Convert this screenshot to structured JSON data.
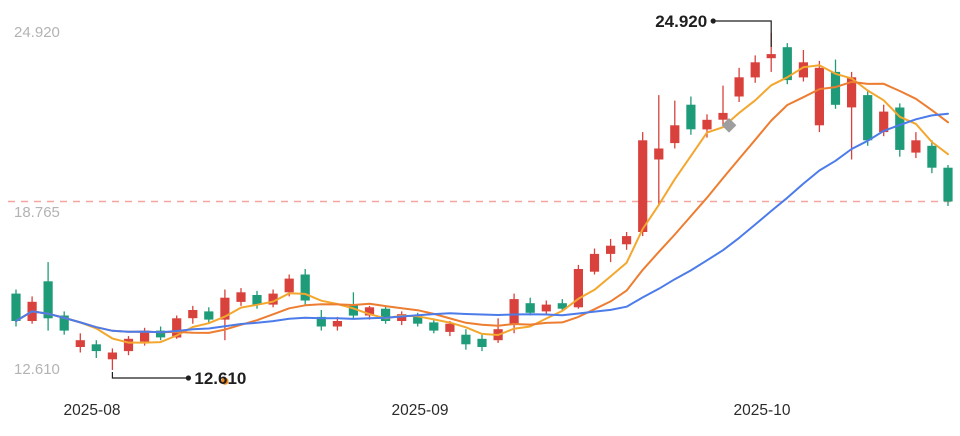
{
  "chart": {
    "y_axis_labels": [
      {
        "text": "24.920",
        "value": 24.92
      },
      {
        "text": "18.765",
        "value": 18.765
      },
      {
        "text": "12.610",
        "value": 12.61
      }
    ],
    "x_axis_labels": [
      {
        "text": "2025-08",
        "month": "2025-08"
      },
      {
        "text": "2025-09",
        "month": "2025-09"
      },
      {
        "text": "2025-10",
        "month": "2025-10"
      }
    ]
  },
  "chart_data": {
    "type": "candlestick",
    "ylim": [
      12.61,
      24.92
    ],
    "grid": false,
    "legend": false,
    "dates": [
      "2025-07-28",
      "2025-07-29",
      "2025-07-30",
      "2025-07-31",
      "2025-08-01",
      "2025-08-04",
      "2025-08-05",
      "2025-08-06",
      "2025-08-07",
      "2025-08-08",
      "2025-08-11",
      "2025-08-12",
      "2025-08-13",
      "2025-08-14",
      "2025-08-15",
      "2025-08-18",
      "2025-08-19",
      "2025-08-20",
      "2025-08-21",
      "2025-08-22",
      "2025-08-25",
      "2025-08-26",
      "2025-08-27",
      "2025-08-28",
      "2025-08-29",
      "2025-09-01",
      "2025-09-02",
      "2025-09-03",
      "2025-09-04",
      "2025-09-05",
      "2025-09-08",
      "2025-09-09",
      "2025-09-10",
      "2025-09-11",
      "2025-09-12",
      "2025-09-15",
      "2025-09-16",
      "2025-09-17",
      "2025-09-18",
      "2025-09-19",
      "2025-09-22",
      "2025-09-23",
      "2025-09-24",
      "2025-09-25",
      "2025-09-26",
      "2025-09-29",
      "2025-09-30",
      "2025-10-01",
      "2025-10-02",
      "2025-10-03",
      "2025-10-06",
      "2025-10-07",
      "2025-10-08",
      "2025-10-09",
      "2025-10-10",
      "2025-10-13",
      "2025-10-14",
      "2025-10-15",
      "2025-10-16"
    ],
    "ohlc_columns": [
      "open",
      "high",
      "low",
      "close"
    ],
    "ohlc": [
      [
        15.4,
        15.55,
        14.2,
        14.4
      ],
      [
        14.4,
        15.3,
        14.3,
        15.1
      ],
      [
        15.85,
        16.55,
        14.05,
        14.5
      ],
      [
        14.6,
        14.75,
        13.9,
        14.05
      ],
      [
        13.45,
        13.95,
        13.25,
        13.7
      ],
      [
        13.55,
        13.7,
        13.05,
        13.3
      ],
      [
        13.0,
        13.4,
        12.61,
        13.25
      ],
      [
        13.3,
        13.85,
        13.15,
        13.75
      ],
      [
        13.65,
        14.15,
        13.5,
        14.05
      ],
      [
        14.05,
        14.2,
        13.7,
        13.8
      ],
      [
        13.8,
        14.6,
        13.75,
        14.5
      ],
      [
        14.5,
        14.95,
        14.3,
        14.8
      ],
      [
        14.75,
        14.9,
        14.3,
        14.45
      ],
      [
        14.45,
        15.55,
        13.7,
        15.25
      ],
      [
        15.1,
        15.6,
        14.95,
        15.45
      ],
      [
        15.35,
        15.5,
        14.85,
        15.0
      ],
      [
        15.0,
        15.55,
        14.9,
        15.4
      ],
      [
        15.45,
        16.1,
        15.3,
        15.95
      ],
      [
        16.1,
        16.3,
        14.95,
        15.15
      ],
      [
        14.55,
        14.8,
        14.05,
        14.2
      ],
      [
        14.2,
        14.55,
        14.05,
        14.4
      ],
      [
        15.0,
        15.45,
        14.5,
        14.6
      ],
      [
        14.6,
        14.95,
        14.45,
        14.9
      ],
      [
        14.85,
        14.95,
        14.3,
        14.4
      ],
      [
        14.4,
        14.75,
        14.25,
        14.65
      ],
      [
        14.6,
        14.7,
        14.2,
        14.3
      ],
      [
        14.35,
        14.45,
        13.95,
        14.05
      ],
      [
        14.0,
        14.4,
        13.85,
        14.3
      ],
      [
        13.9,
        14.1,
        13.35,
        13.55
      ],
      [
        13.75,
        13.9,
        13.3,
        13.45
      ],
      [
        13.7,
        14.5,
        13.6,
        14.1
      ],
      [
        14.3,
        15.4,
        13.95,
        15.2
      ],
      [
        15.05,
        15.25,
        14.6,
        14.7
      ],
      [
        14.75,
        15.15,
        14.65,
        15.0
      ],
      [
        15.05,
        15.2,
        14.75,
        14.85
      ],
      [
        14.9,
        16.45,
        14.85,
        16.3
      ],
      [
        16.2,
        17.05,
        16.1,
        16.85
      ],
      [
        16.85,
        17.4,
        16.55,
        17.15
      ],
      [
        17.2,
        17.65,
        17.0,
        17.5
      ],
      [
        17.65,
        21.3,
        17.5,
        21.0
      ],
      [
        20.3,
        22.65,
        18.6,
        20.7
      ],
      [
        20.9,
        22.45,
        20.7,
        21.55
      ],
      [
        22.3,
        22.6,
        21.2,
        21.4
      ],
      [
        21.4,
        21.95,
        21.1,
        21.75
      ],
      [
        21.75,
        23.0,
        21.55,
        22.0
      ],
      [
        22.6,
        23.65,
        22.4,
        23.3
      ],
      [
        23.3,
        24.1,
        23.1,
        23.85
      ],
      [
        24.0,
        24.92,
        23.5,
        24.15
      ],
      [
        24.4,
        24.55,
        23.05,
        23.2
      ],
      [
        23.3,
        24.3,
        23.15,
        23.85
      ],
      [
        21.55,
        23.9,
        21.3,
        23.65
      ],
      [
        23.5,
        23.95,
        22.15,
        22.3
      ],
      [
        22.2,
        23.5,
        20.3,
        23.3
      ],
      [
        22.65,
        22.8,
        20.8,
        21.0
      ],
      [
        21.3,
        22.3,
        21.15,
        22.05
      ],
      [
        22.2,
        22.35,
        20.4,
        20.65
      ],
      [
        20.55,
        21.3,
        20.35,
        21.0
      ],
      [
        20.8,
        21.0,
        19.8,
        20.0
      ],
      [
        20.0,
        20.1,
        18.6,
        18.765
      ]
    ],
    "moving_averages": [
      {
        "name": "MA5",
        "period": 5,
        "color": "#f3a72e"
      },
      {
        "name": "MA10",
        "period": 10,
        "color": "#ed7d31"
      },
      {
        "name": "MA20",
        "period": 20,
        "color": "#4c7bea"
      }
    ],
    "reference_line": {
      "value": 18.765,
      "color": "#f29c94",
      "style": "dashed"
    },
    "annotations": [
      {
        "type": "max",
        "text": "24.920",
        "date": "2025-10-01",
        "value": 24.92
      },
      {
        "type": "min",
        "text": "12.610",
        "date": "2025-08-05",
        "value": 12.61
      }
    ],
    "markers": [
      {
        "shape": "diamond",
        "color": "#9e9e9e",
        "date": "2025-09-26",
        "value": 21.55
      },
      {
        "shape": "dot",
        "color": "#f08a1d",
        "date": "2025-08-14",
        "value": 12.2
      }
    ],
    "colors": {
      "up": "#d8413c",
      "down": "#1e9b78",
      "annotation": "#1f1f1f"
    }
  }
}
